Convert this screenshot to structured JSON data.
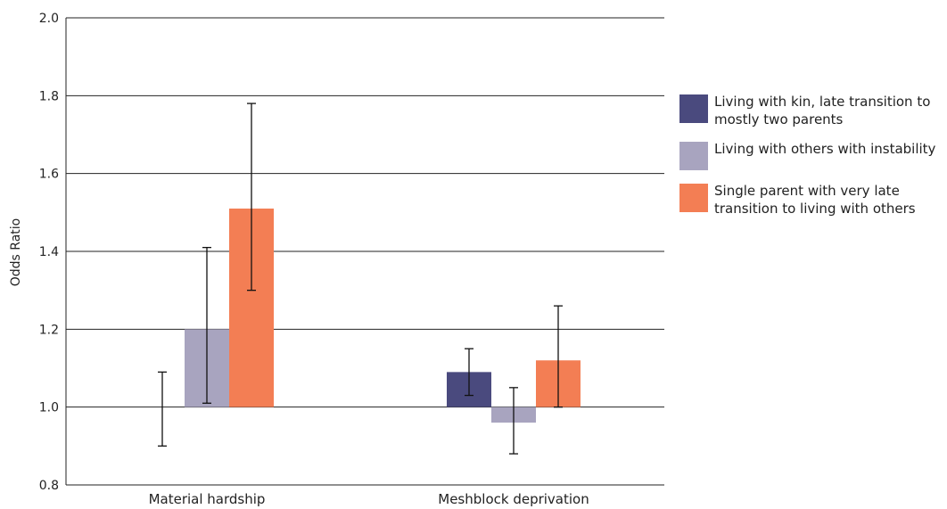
{
  "chart_data": {
    "type": "bar",
    "title": "",
    "xlabel": "",
    "ylabel": "Odds Ratio",
    "ylim": [
      0.8,
      2.0
    ],
    "baseline": 1.0,
    "yticks": [
      0.8,
      1.0,
      1.2,
      1.4,
      1.6,
      1.8,
      2.0
    ],
    "ytick_labels": [
      "0.8",
      "1.0",
      "1.2",
      "1.4",
      "1.6",
      "1.8",
      "2.0"
    ],
    "categories": [
      "Material hardship",
      "Meshblock deprivation"
    ],
    "series": [
      {
        "name": "Living with kin, late transition to mostly two parents",
        "color": "#4a4a7e",
        "values": [
          1.0,
          1.09
        ],
        "ci_low": [
          0.9,
          1.03
        ],
        "ci_high": [
          1.09,
          1.15
        ]
      },
      {
        "name": "Living with others with instability",
        "color": "#a8a4bf",
        "values": [
          1.2,
          0.96
        ],
        "ci_low": [
          1.01,
          0.88
        ],
        "ci_high": [
          1.41,
          1.05
        ]
      },
      {
        "name": "Single parent with very late transition to living with others",
        "color": "#f37e54",
        "values": [
          1.51,
          1.12
        ],
        "ci_low": [
          1.3,
          1.0
        ],
        "ci_high": [
          1.78,
          1.26
        ]
      }
    ],
    "grid": true,
    "legend_position": "right"
  }
}
